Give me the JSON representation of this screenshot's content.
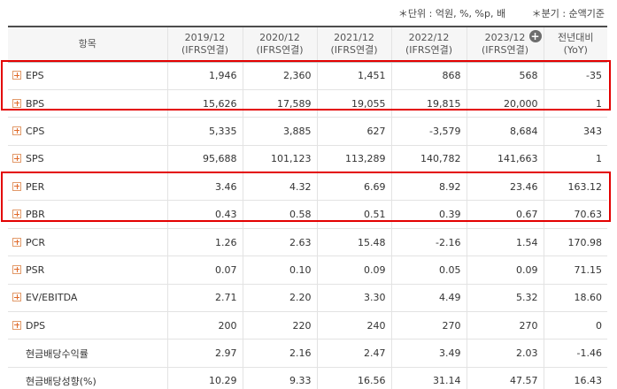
{
  "notes": {
    "unit": "＊단위 : 억원, %, %p, 배",
    "period": "＊분기 : 순액기준"
  },
  "header": {
    "item": "항목",
    "columns": [
      {
        "year": "2019/12",
        "basis": "(IFRS연결)"
      },
      {
        "year": "2020/12",
        "basis": "(IFRS연결)"
      },
      {
        "year": "2021/12",
        "basis": "(IFRS연결)"
      },
      {
        "year": "2022/12",
        "basis": "(IFRS연결)"
      },
      {
        "year": "2023/12",
        "basis": "(IFRS연결)"
      }
    ],
    "yoy": {
      "line1": "전년대비",
      "line2": "(YoY)"
    },
    "expand_icon": "plus-circle-icon"
  },
  "rows": [
    {
      "label": "EPS",
      "expandable": true,
      "values": [
        "1,946",
        "2,360",
        "1,451",
        "868",
        "568"
      ],
      "yoy": "-35",
      "neg": [
        false,
        false,
        false,
        false,
        false
      ],
      "yoy_neg": true
    },
    {
      "label": "BPS",
      "expandable": true,
      "values": [
        "15,626",
        "17,589",
        "19,055",
        "19,815",
        "20,000"
      ],
      "yoy": "1",
      "neg": [
        false,
        false,
        false,
        false,
        false
      ],
      "yoy_neg": false
    },
    {
      "label": "CPS",
      "expandable": true,
      "values": [
        "5,335",
        "3,885",
        "627",
        "-3,579",
        "8,684"
      ],
      "yoy": "343",
      "neg": [
        false,
        false,
        false,
        true,
        false
      ],
      "yoy_neg": false
    },
    {
      "label": "SPS",
      "expandable": true,
      "values": [
        "95,688",
        "101,123",
        "113,289",
        "140,782",
        "141,663"
      ],
      "yoy": "1",
      "neg": [
        false,
        false,
        false,
        false,
        false
      ],
      "yoy_neg": false
    },
    {
      "label": "PER",
      "expandable": true,
      "values": [
        "3.46",
        "4.32",
        "6.69",
        "8.92",
        "23.46"
      ],
      "yoy": "163.12",
      "neg": [
        false,
        false,
        false,
        false,
        false
      ],
      "yoy_neg": false
    },
    {
      "label": "PBR",
      "expandable": true,
      "values": [
        "0.43",
        "0.58",
        "0.51",
        "0.39",
        "0.67"
      ],
      "yoy": "70.63",
      "neg": [
        false,
        false,
        false,
        false,
        false
      ],
      "yoy_neg": false
    },
    {
      "label": "PCR",
      "expandable": true,
      "values": [
        "1.26",
        "2.63",
        "15.48",
        "-2.16",
        "1.54"
      ],
      "yoy": "170.98",
      "neg": [
        false,
        false,
        false,
        true,
        false
      ],
      "yoy_neg": false
    },
    {
      "label": "PSR",
      "expandable": true,
      "values": [
        "0.07",
        "0.10",
        "0.09",
        "0.05",
        "0.09"
      ],
      "yoy": "71.15",
      "neg": [
        false,
        false,
        false,
        false,
        false
      ],
      "yoy_neg": false
    },
    {
      "label": "EV/EBITDA",
      "expandable": true,
      "values": [
        "2.71",
        "2.20",
        "3.30",
        "4.49",
        "5.32"
      ],
      "yoy": "18.60",
      "neg": [
        false,
        false,
        false,
        false,
        false
      ],
      "yoy_neg": false
    },
    {
      "label": "DPS",
      "expandable": true,
      "values": [
        "200",
        "220",
        "240",
        "270",
        "270"
      ],
      "yoy": "0",
      "neg": [
        false,
        false,
        false,
        false,
        false
      ],
      "yoy_neg": false
    },
    {
      "label": "현금배당수익률",
      "expandable": false,
      "values": [
        "2.97",
        "2.16",
        "2.47",
        "3.49",
        "2.03"
      ],
      "yoy": "-1.46",
      "neg": [
        false,
        false,
        false,
        false,
        false
      ],
      "yoy_neg": true
    },
    {
      "label": "현금배당성향(%)",
      "expandable": false,
      "values": [
        "10.29",
        "9.33",
        "16.56",
        "31.14",
        "47.57"
      ],
      "yoy": "16.43",
      "neg": [
        false,
        false,
        false,
        false,
        false
      ],
      "yoy_neg": false
    }
  ],
  "highlight_color": "#e30000",
  "negative_color": "#e03030"
}
